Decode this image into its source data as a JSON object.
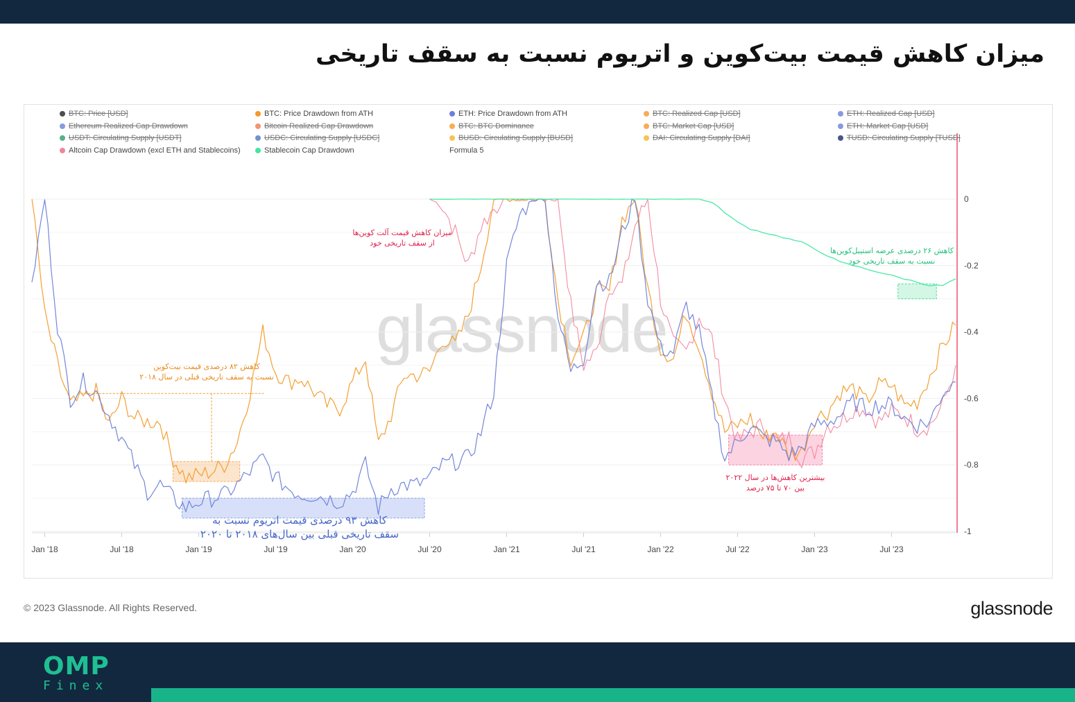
{
  "page": {
    "title": "میزان کاهش قیمت بیت‌کوین و اتریوم نسبت به سقف تاریخی",
    "copyright": "© 2023 Glassnode. All Rights Reserved.",
    "brand": "glassnode",
    "watermark": "glassnode",
    "footer_logo_main": "OMP",
    "footer_logo_sub": "Finex"
  },
  "colors": {
    "btc": "#f39a28",
    "eth": "#6c7fd8",
    "altcoin": "#f0869c",
    "stablecoin": "#3ee8a0",
    "header_bg": "#12283f",
    "accent_green": "#19b38a"
  },
  "legend": [
    {
      "label": "BTC: Price [USD]",
      "color": "#222222",
      "active": false
    },
    {
      "label": "BTC: Price Drawdown from ATH",
      "color": "#f39a28",
      "active": true
    },
    {
      "label": "ETH: Price Drawdown from ATH",
      "color": "#6c7fd8",
      "active": true
    },
    {
      "label": "BTC: Realized Cap [USD]",
      "color": "#f39a28",
      "active": false
    },
    {
      "label": "ETH: Realized Cap [USD]",
      "color": "#6c7fd8",
      "active": false
    },
    {
      "label": "Ethereum Realized Cap Drawdown",
      "color": "#6c7fd8",
      "active": false
    },
    {
      "label": "Bitcoin Realized Cap Drawdown",
      "color": "#f07a4a",
      "active": false
    },
    {
      "label": "BTC: BTC Dominance",
      "color": "#f39a28",
      "active": false
    },
    {
      "label": "BTC: Market Cap [USD]",
      "color": "#f39a28",
      "active": false
    },
    {
      "label": "ETH: Market Cap [USD]",
      "color": "#6c7fd8",
      "active": false
    },
    {
      "label": "USDT: Circulating Supply [USDT]",
      "color": "#2a9d70",
      "active": false
    },
    {
      "label": "USDC: Circulating Supply [USDC]",
      "color": "#4a78c8",
      "active": false
    },
    {
      "label": "BUSD: Circulating Supply [BUSD]",
      "color": "#f3b52a",
      "active": false
    },
    {
      "label": "DAI: Circulating Supply [DAI]",
      "color": "#f3b52a",
      "active": false
    },
    {
      "label": "TUSD: Circulating Supply [TUSD]",
      "color": "#1e2a6a",
      "active": false
    },
    {
      "label": "Altcoin Cap Drawdown (excl ETH and Stablecoins)",
      "color": "#f0869c",
      "active": true
    },
    {
      "label": "Stablecoin Cap Drawdown",
      "color": "#3ee8a0",
      "active": true
    },
    {
      "label": "Formula 5",
      "color": "",
      "active": true
    }
  ],
  "annotations": {
    "btc_2018": [
      "کاهش ۸۲ درصدی قیمت بیت‌کوین",
      "نسبت به سقف تاریخی قبلی در سال ۲۰۱۸"
    ],
    "eth_2018_2020": [
      "کاهش ۹۳ درصدی قیمت اتریوم نسبت به",
      "سقف تاریخی قبلی بین سال‌های ۲۰۱۸ تا ۲۰۲۰"
    ],
    "altcoin": [
      "میزان کاهش قیمت آلت کوین‌ها",
      "از سقف تاریخی خود"
    ],
    "stablecoin": [
      "کاهش ۲۶ درصدی عرضه استیبل‌کوین‌ها",
      "نسبت به سقف تاریخی خود"
    ],
    "drop_2022": [
      "بیشترین کاهش‌ها در سال ۲۰۲۲",
      "بین ۷۰ تا ۷۵ درصد"
    ]
  },
  "chart_data": {
    "type": "line",
    "title": "",
    "xlabel": "",
    "ylabel": "",
    "x_ticks": [
      "Jan '18",
      "Jul '18",
      "Jan '19",
      "Jul '19",
      "Jan '20",
      "Jul '20",
      "Jan '21",
      "Jul '21",
      "Jan '22",
      "Jul '22",
      "Jan '23",
      "Jul '23"
    ],
    "y_ticks": [
      "0",
      "-0.2",
      "-0.4",
      "-0.6",
      "-0.8",
      "-1"
    ],
    "xlim": [
      "2017-12",
      "2023-12"
    ],
    "ylim": [
      -1,
      0
    ],
    "y_axis_side": "right",
    "grid": true,
    "legend_position": "top",
    "series": [
      {
        "name": "BTC: Price Drawdown from ATH",
        "color": "#f39a28",
        "x": [
          "2017-12",
          "2018-01",
          "2018-02",
          "2018-03",
          "2018-04",
          "2018-05",
          "2018-06",
          "2018-07",
          "2018-08",
          "2018-09",
          "2018-10",
          "2018-11",
          "2018-12",
          "2019-01",
          "2019-02",
          "2019-03",
          "2019-04",
          "2019-05",
          "2019-06",
          "2019-07",
          "2019-08",
          "2019-09",
          "2019-10",
          "2019-11",
          "2019-12",
          "2020-01",
          "2020-02",
          "2020-03",
          "2020-04",
          "2020-05",
          "2020-06",
          "2020-07",
          "2020-08",
          "2020-09",
          "2020-10",
          "2020-11",
          "2020-12",
          "2021-01",
          "2021-02",
          "2021-03",
          "2021-04",
          "2021-05",
          "2021-06",
          "2021-07",
          "2021-08",
          "2021-09",
          "2021-10",
          "2021-11",
          "2021-12",
          "2022-01",
          "2022-02",
          "2022-03",
          "2022-04",
          "2022-05",
          "2022-06",
          "2022-07",
          "2022-08",
          "2022-09",
          "2022-10",
          "2022-11",
          "2022-12",
          "2023-01",
          "2023-02",
          "2023-03",
          "2023-04",
          "2023-05",
          "2023-06",
          "2023-07",
          "2023-08",
          "2023-09",
          "2023-10",
          "2023-11",
          "2023-12"
        ],
        "values": [
          0,
          -0.35,
          -0.5,
          -0.62,
          -0.6,
          -0.58,
          -0.68,
          -0.6,
          -0.66,
          -0.67,
          -0.67,
          -0.78,
          -0.84,
          -0.83,
          -0.82,
          -0.8,
          -0.73,
          -0.58,
          -0.4,
          -0.52,
          -0.55,
          -0.54,
          -0.58,
          -0.62,
          -0.63,
          -0.55,
          -0.48,
          -0.74,
          -0.65,
          -0.53,
          -0.53,
          -0.52,
          -0.42,
          -0.44,
          -0.35,
          -0.2,
          0,
          0,
          0,
          0,
          0,
          -0.3,
          -0.48,
          -0.42,
          -0.28,
          -0.28,
          -0.06,
          0,
          -0.27,
          -0.45,
          -0.48,
          -0.34,
          -0.44,
          -0.58,
          -0.7,
          -0.68,
          -0.66,
          -0.72,
          -0.7,
          -0.77,
          -0.76,
          -0.66,
          -0.64,
          -0.58,
          -0.57,
          -0.61,
          -0.56,
          -0.56,
          -0.62,
          -0.61,
          -0.53,
          -0.44,
          -0.38
        ]
      },
      {
        "name": "ETH: Price Drawdown from ATH",
        "color": "#6c7fd8",
        "x": [
          "2017-12",
          "2018-01",
          "2018-02",
          "2018-03",
          "2018-04",
          "2018-05",
          "2018-06",
          "2018-07",
          "2018-08",
          "2018-09",
          "2018-10",
          "2018-11",
          "2018-12",
          "2019-01",
          "2019-02",
          "2019-03",
          "2019-04",
          "2019-05",
          "2019-06",
          "2019-07",
          "2019-08",
          "2019-09",
          "2019-10",
          "2019-11",
          "2019-12",
          "2020-01",
          "2020-02",
          "2020-03",
          "2020-04",
          "2020-05",
          "2020-06",
          "2020-07",
          "2020-08",
          "2020-09",
          "2020-10",
          "2020-11",
          "2020-12",
          "2021-01",
          "2021-02",
          "2021-03",
          "2021-04",
          "2021-05",
          "2021-06",
          "2021-07",
          "2021-08",
          "2021-09",
          "2021-10",
          "2021-11",
          "2021-12",
          "2022-01",
          "2022-02",
          "2022-03",
          "2022-04",
          "2022-05",
          "2022-06",
          "2022-07",
          "2022-08",
          "2022-09",
          "2022-10",
          "2022-11",
          "2022-12",
          "2023-01",
          "2023-02",
          "2023-03",
          "2023-04",
          "2023-05",
          "2023-06",
          "2023-07",
          "2023-08",
          "2023-09",
          "2023-10",
          "2023-11",
          "2023-12"
        ],
        "values": [
          -0.25,
          0,
          -0.38,
          -0.6,
          -0.55,
          -0.58,
          -0.65,
          -0.72,
          -0.8,
          -0.88,
          -0.86,
          -0.9,
          -0.93,
          -0.91,
          -0.9,
          -0.89,
          -0.86,
          -0.82,
          -0.78,
          -0.84,
          -0.87,
          -0.89,
          -0.89,
          -0.9,
          -0.91,
          -0.88,
          -0.8,
          -0.93,
          -0.87,
          -0.86,
          -0.86,
          -0.84,
          -0.8,
          -0.79,
          -0.78,
          -0.7,
          -0.58,
          -0.2,
          -0.05,
          0,
          0,
          -0.35,
          -0.52,
          -0.48,
          -0.25,
          -0.25,
          -0.1,
          0,
          -0.3,
          -0.45,
          -0.46,
          -0.32,
          -0.4,
          -0.6,
          -0.78,
          -0.73,
          -0.68,
          -0.72,
          -0.73,
          -0.77,
          -0.75,
          -0.68,
          -0.67,
          -0.65,
          -0.61,
          -0.63,
          -0.62,
          -0.62,
          -0.66,
          -0.68,
          -0.67,
          -0.58,
          -0.55
        ]
      },
      {
        "name": "Altcoin Cap Drawdown (excl ETH and Stablecoins)",
        "color": "#f0869c",
        "x": [
          "2020-07",
          "2020-08",
          "2020-09",
          "2020-10",
          "2020-11",
          "2020-12",
          "2021-01",
          "2021-02",
          "2021-03",
          "2021-04",
          "2021-05",
          "2021-06",
          "2021-07",
          "2021-08",
          "2021-09",
          "2021-10",
          "2021-11",
          "2021-12",
          "2022-01",
          "2022-02",
          "2022-03",
          "2022-04",
          "2022-05",
          "2022-06",
          "2022-07",
          "2022-08",
          "2022-09",
          "2022-10",
          "2022-11",
          "2022-12",
          "2023-01",
          "2023-02",
          "2023-03",
          "2023-04",
          "2023-05",
          "2023-06",
          "2023-07",
          "2023-08",
          "2023-09",
          "2023-10",
          "2023-11",
          "2023-12"
        ],
        "values": [
          0,
          -0.02,
          -0.1,
          -0.2,
          -0.08,
          -0.03,
          0,
          0,
          0,
          0,
          0,
          -0.32,
          -0.5,
          -0.46,
          -0.26,
          -0.26,
          -0.08,
          0,
          -0.3,
          -0.44,
          -0.46,
          -0.35,
          -0.42,
          -0.6,
          -0.73,
          -0.7,
          -0.68,
          -0.73,
          -0.72,
          -0.78,
          -0.76,
          -0.68,
          -0.67,
          -0.63,
          -0.63,
          -0.67,
          -0.64,
          -0.65,
          -0.69,
          -0.68,
          -0.62,
          -0.5
        ]
      },
      {
        "name": "Stablecoin Cap Drawdown",
        "color": "#3ee8a0",
        "x": [
          "2020-07",
          "2020-10",
          "2021-01",
          "2021-04",
          "2021-07",
          "2021-10",
          "2022-01",
          "2022-04",
          "2022-05",
          "2022-06",
          "2022-07",
          "2022-08",
          "2022-09",
          "2022-10",
          "2022-11",
          "2022-12",
          "2023-01",
          "2023-02",
          "2023-03",
          "2023-04",
          "2023-05",
          "2023-06",
          "2023-07",
          "2023-08",
          "2023-09",
          "2023-10",
          "2023-11",
          "2023-12"
        ],
        "values": [
          0,
          0,
          0,
          0,
          0,
          0,
          0,
          0,
          -0.01,
          -0.04,
          -0.07,
          -0.09,
          -0.1,
          -0.11,
          -0.12,
          -0.13,
          -0.15,
          -0.17,
          -0.19,
          -0.2,
          -0.21,
          -0.22,
          -0.23,
          -0.24,
          -0.25,
          -0.26,
          -0.26,
          -0.24
        ]
      }
    ]
  }
}
